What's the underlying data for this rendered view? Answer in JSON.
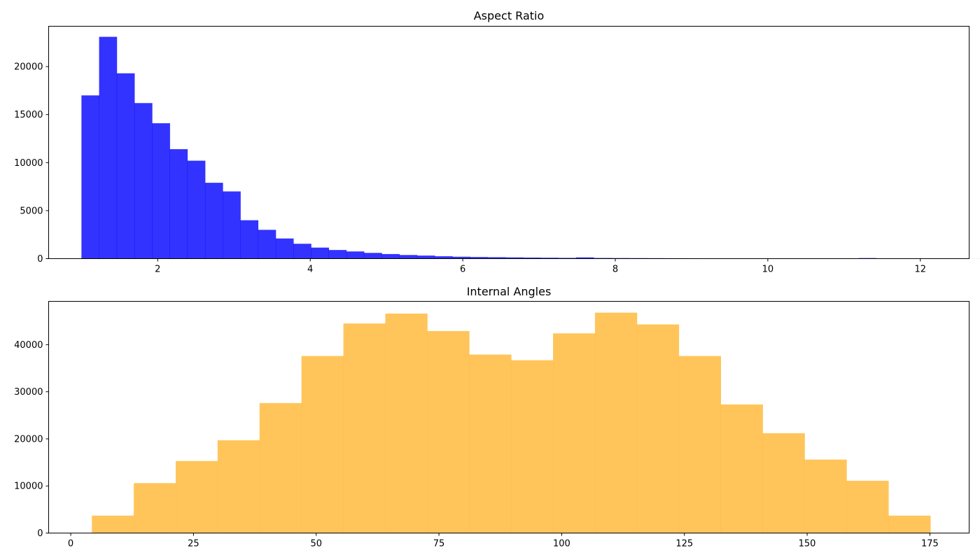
{
  "chart_data": [
    {
      "type": "bar",
      "title": "Aspect Ratio",
      "xlabel": "",
      "ylabel": "",
      "color": "#0000ff",
      "xlim": [
        0.57,
        12.64
      ],
      "ylim": [
        0,
        24200
      ],
      "xticks": [
        2,
        4,
        6,
        8,
        10,
        12
      ],
      "yticks": [
        0,
        5000,
        10000,
        15000,
        20000
      ],
      "bins": {
        "start": 1.0,
        "width": 0.2316,
        "values": [
          17000,
          23100,
          19300,
          16200,
          14100,
          11400,
          10200,
          7900,
          7000,
          4000,
          3000,
          2100,
          1550,
          1150,
          900,
          750,
          600,
          480,
          380,
          320,
          250,
          200,
          170,
          150,
          130,
          110,
          95,
          80,
          130,
          70,
          60,
          55,
          50,
          45,
          40,
          35,
          30,
          25,
          25,
          20,
          20,
          15,
          15,
          15,
          60,
          10,
          10,
          10,
          10,
          10,
          5
        ]
      }
    },
    {
      "type": "bar",
      "title": "Internal Angles",
      "xlabel": "",
      "ylabel": "",
      "color": "#ffb732",
      "xlim": [
        -4.5,
        183
      ],
      "ylim": [
        0,
        49200
      ],
      "xticks": [
        0,
        25,
        50,
        75,
        100,
        125,
        150,
        175
      ],
      "yticks": [
        0,
        10000,
        20000,
        30000,
        40000
      ],
      "bins": {
        "start": 4.3,
        "width": 8.54,
        "values": [
          3700,
          10600,
          15300,
          19700,
          27600,
          37600,
          44500,
          46600,
          42900,
          37900,
          36700,
          42400,
          46800,
          44300,
          37600,
          27300,
          21200,
          15600,
          11100,
          3700
        ]
      }
    }
  ]
}
